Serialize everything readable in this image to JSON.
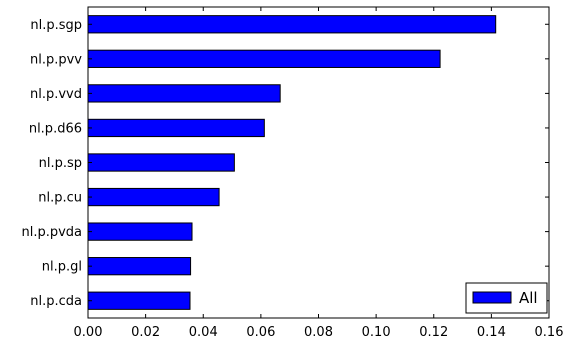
{
  "chart_data": {
    "type": "bar",
    "orientation": "horizontal",
    "categories": [
      "nl.p.sgp",
      "nl.p.pvv",
      "nl.p.vvd",
      "nl.p.d66",
      "nl.p.sp",
      "nl.p.cu",
      "nl.p.pvda",
      "nl.p.gl",
      "nl.p.cda"
    ],
    "series": [
      {
        "name": "All",
        "values": [
          0.1415,
          0.1222,
          0.0667,
          0.0612,
          0.0508,
          0.0455,
          0.0361,
          0.0356,
          0.0354
        ]
      }
    ],
    "xlim": [
      0,
      0.16
    ],
    "xticks": [
      "0.00",
      "0.02",
      "0.04",
      "0.06",
      "0.08",
      "0.10",
      "0.12",
      "0.14",
      "0.16"
    ],
    "grid": false,
    "legend_position": "bottom-right",
    "colors": {
      "bar": "#0000ff",
      "edge": "#000000"
    }
  }
}
